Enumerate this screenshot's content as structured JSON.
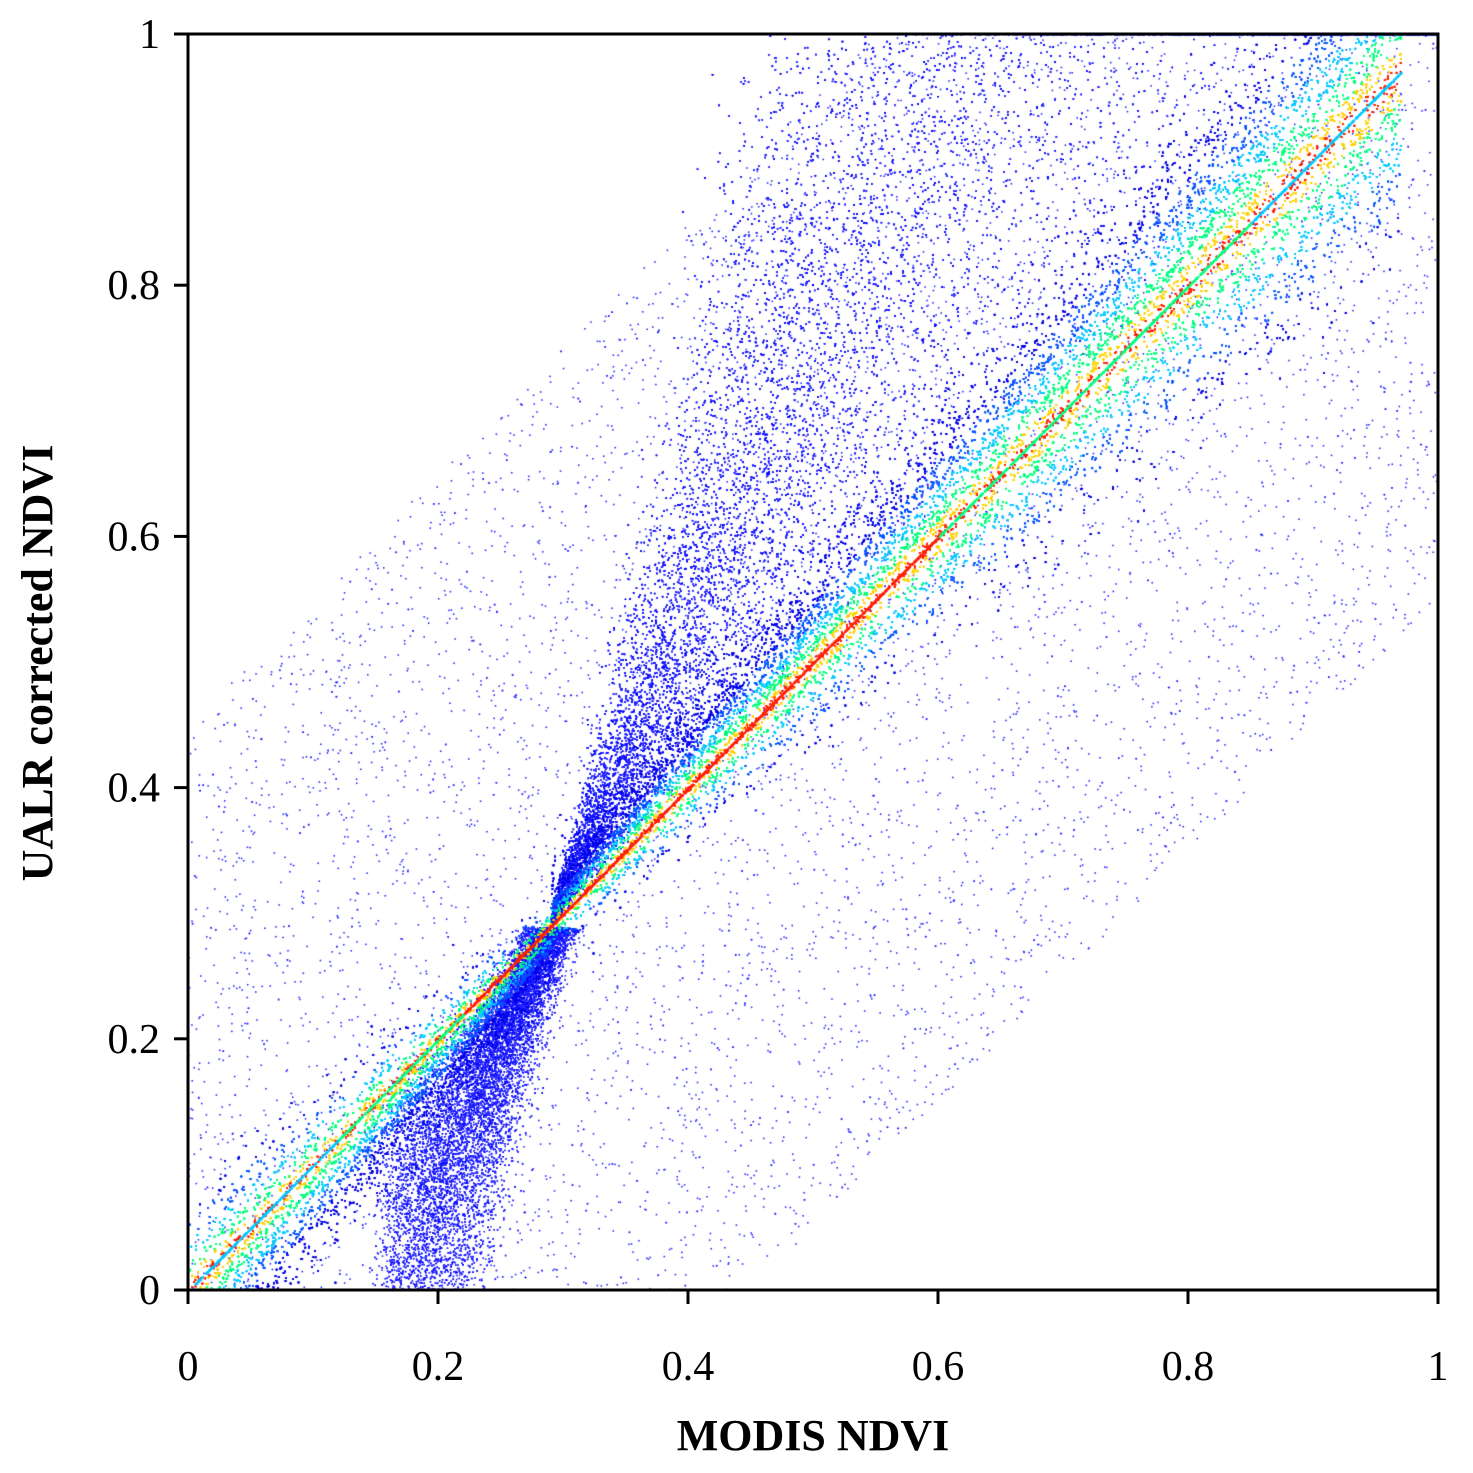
{
  "chart_data": {
    "type": "scatter",
    "title": "",
    "xlabel": "MODIS NDVI",
    "ylabel": "UALR corrected NDVI",
    "xlim": [
      0,
      1
    ],
    "ylim": [
      0,
      1
    ],
    "x_ticks": [
      0,
      0.2,
      0.4,
      0.6,
      0.8,
      1
    ],
    "x_tick_labels": [
      "0",
      "0.2",
      "0.4",
      "0.6",
      "0.8",
      "1"
    ],
    "y_ticks": [
      0,
      0.2,
      0.4,
      0.6,
      0.8,
      1
    ],
    "y_tick_labels": [
      "0",
      "0.2",
      "0.4",
      "0.6",
      "0.8",
      "1"
    ],
    "grid": false,
    "legend": "none",
    "density_colormap": [
      "#0000e6",
      "#0055ff",
      "#00c8ff",
      "#00ff7f",
      "#ffd000",
      "#ff2000"
    ],
    "point_color": "#1414ff",
    "series": [
      {
        "description_key": "one-to-one core",
        "points": [
          [
            0.02,
            0.02
          ],
          [
            0.1,
            0.1
          ],
          [
            0.2,
            0.2
          ],
          [
            0.29,
            0.29
          ],
          [
            0.4,
            0.4
          ],
          [
            0.5,
            0.5
          ],
          [
            0.6,
            0.6
          ],
          [
            0.7,
            0.7
          ],
          [
            0.8,
            0.8
          ],
          [
            0.9,
            0.9
          ],
          [
            0.97,
            0.97
          ]
        ]
      },
      {
        "description_key": "upper plume",
        "points": [
          [
            0.3,
            0.35
          ],
          [
            0.32,
            0.45
          ],
          [
            0.35,
            0.55
          ],
          [
            0.4,
            0.6
          ],
          [
            0.45,
            0.7
          ],
          [
            0.5,
            0.8
          ],
          [
            0.55,
            0.9
          ],
          [
            0.6,
            0.95
          ],
          [
            0.7,
            0.9
          ],
          [
            0.8,
            0.85
          ]
        ]
      },
      {
        "description_key": "lower plume",
        "points": [
          [
            0.28,
            0.2
          ],
          [
            0.26,
            0.15
          ],
          [
            0.25,
            0.1
          ],
          [
            0.24,
            0.05
          ],
          [
            0.22,
            0.02
          ],
          [
            0.27,
            0.01
          ]
        ]
      }
    ]
  }
}
